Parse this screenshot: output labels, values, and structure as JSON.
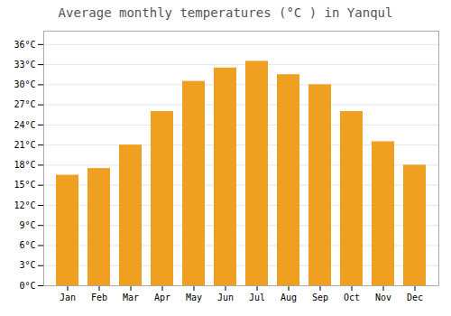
{
  "chart_data": {
    "type": "bar",
    "title": "Average monthly temperatures (°C ) in Yanqul",
    "categories": [
      "Jan",
      "Feb",
      "Mar",
      "Apr",
      "May",
      "Jun",
      "Jul",
      "Aug",
      "Sep",
      "Oct",
      "Nov",
      "Dec"
    ],
    "values": [
      16.5,
      17.5,
      21.0,
      26.0,
      30.5,
      32.5,
      33.5,
      31.5,
      30.0,
      26.0,
      21.5,
      18.0
    ],
    "color": "#F0A020",
    "ylim": [
      0,
      38
    ],
    "yticks": [
      {
        "value": 0,
        "label": "0°C"
      },
      {
        "value": 3,
        "label": "3°C"
      },
      {
        "value": 6,
        "label": "6°C"
      },
      {
        "value": 9,
        "label": "9°C"
      },
      {
        "value": 12,
        "label": "12°C"
      },
      {
        "value": 15,
        "label": "15°C"
      },
      {
        "value": 18,
        "label": "18°C"
      },
      {
        "value": 21,
        "label": "21°C"
      },
      {
        "value": 24,
        "label": "24°C"
      },
      {
        "value": 27,
        "label": "27°C"
      },
      {
        "value": 30,
        "label": "30°C"
      },
      {
        "value": 33,
        "label": "33°C"
      },
      {
        "value": 36,
        "label": "36°C"
      }
    ],
    "grid": true
  }
}
